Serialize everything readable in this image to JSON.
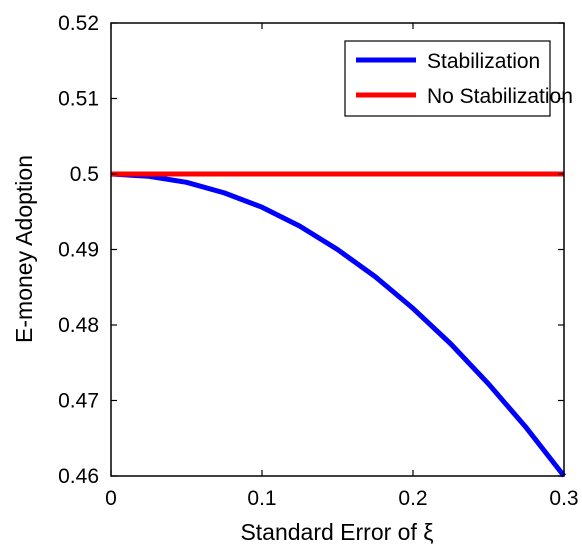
{
  "chart_data": {
    "type": "line",
    "title": "",
    "xlabel": "Standard Error of ξ",
    "ylabel": "E-money Adoption",
    "xlim": [
      0,
      0.3
    ],
    "ylim": [
      0.46,
      0.52
    ],
    "xticks": [
      {
        "value": 0,
        "label": "0"
      },
      {
        "value": 0.1,
        "label": "0.1"
      },
      {
        "value": 0.2,
        "label": "0.2"
      },
      {
        "value": 0.3,
        "label": "0.3"
      }
    ],
    "yticks": [
      {
        "value": 0.46,
        "label": "0.46"
      },
      {
        "value": 0.47,
        "label": "0.47"
      },
      {
        "value": 0.48,
        "label": "0.48"
      },
      {
        "value": 0.49,
        "label": "0.49"
      },
      {
        "value": 0.5,
        "label": "0.5"
      },
      {
        "value": 0.51,
        "label": "0.51"
      },
      {
        "value": 0.52,
        "label": "0.52"
      }
    ],
    "grid": false,
    "legend_position": "top-right",
    "series": [
      {
        "name": "Stabilization",
        "color": "#0000ff",
        "x": [
          0,
          0.025,
          0.05,
          0.075,
          0.1,
          0.125,
          0.15,
          0.175,
          0.2,
          0.225,
          0.25,
          0.275,
          0.3
        ],
        "y": [
          0.5,
          0.4997,
          0.4989,
          0.4975,
          0.4956,
          0.4931,
          0.49,
          0.4864,
          0.4822,
          0.4775,
          0.4722,
          0.4664,
          0.46
        ]
      },
      {
        "name": "No Stabilization",
        "color": "#ff0000",
        "x": [
          0,
          0.3
        ],
        "y": [
          0.5,
          0.5
        ]
      }
    ]
  }
}
